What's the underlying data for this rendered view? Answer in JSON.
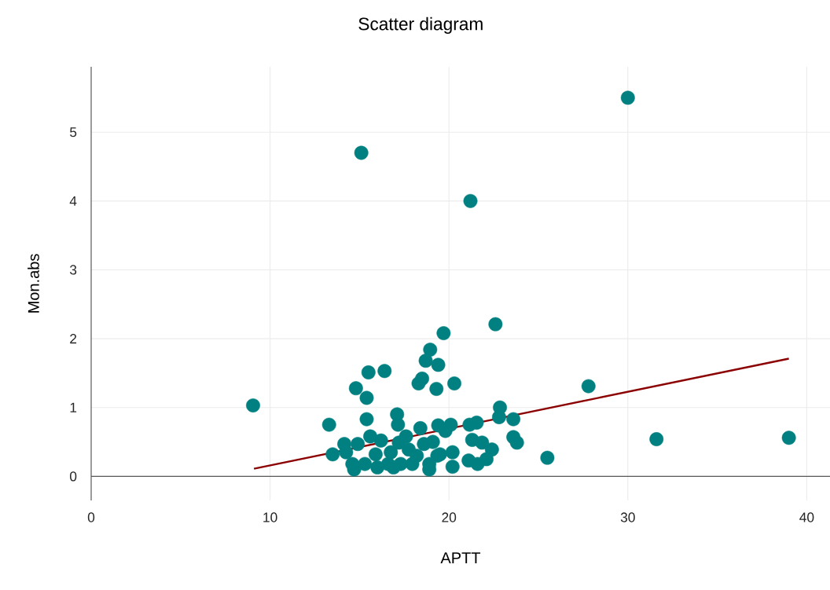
{
  "chart_data": {
    "type": "scatter",
    "title": "Scatter diagram",
    "xlabel": "APTT",
    "ylabel": "Mon.abs",
    "xlim": [
      0,
      41.3
    ],
    "ylim": [
      -0.35,
      5.95
    ],
    "xticks": [
      0,
      10,
      20,
      30,
      40
    ],
    "yticks": [
      0,
      1,
      2,
      3,
      4,
      5
    ],
    "grid": true,
    "series": [
      {
        "marker": "circle",
        "color": "#008080",
        "x": [
          9.05,
          30.0,
          15.1,
          21.2,
          22.6,
          19.7,
          18.95,
          19.4,
          18.7,
          16.4,
          15.5,
          18.3,
          18.5,
          20.3,
          19.3,
          14.8,
          15.4,
          27.8,
          31.6,
          39.0,
          25.5,
          13.3,
          15.4,
          17.1,
          17.15,
          18.4,
          22.85,
          22.8,
          23.6,
          23.6,
          23.8,
          21.55,
          21.15,
          20.1,
          19.4,
          19.8,
          21.3,
          21.85,
          22.4,
          22.1,
          21.1,
          21.6,
          20.2,
          20.2,
          19.1,
          19.5,
          18.9,
          18.2,
          17.75,
          17.2,
          16.75,
          16.6,
          16.2,
          15.9,
          15.6,
          15.3,
          14.9,
          14.6,
          14.25,
          14.15,
          13.5,
          17.3,
          17.95,
          18.6,
          17.6,
          16.9,
          16.0,
          14.7,
          18.9,
          19.35
        ],
        "values": [
          1.03,
          5.5,
          4.7,
          4.0,
          2.21,
          2.08,
          1.84,
          1.62,
          1.68,
          1.53,
          1.51,
          1.35,
          1.42,
          1.35,
          1.27,
          1.28,
          1.14,
          1.31,
          0.54,
          0.56,
          0.27,
          0.75,
          0.83,
          0.9,
          0.75,
          0.7,
          1.0,
          0.86,
          0.83,
          0.57,
          0.49,
          0.78,
          0.75,
          0.75,
          0.74,
          0.66,
          0.53,
          0.49,
          0.39,
          0.25,
          0.23,
          0.18,
          0.14,
          0.35,
          0.5,
          0.32,
          0.18,
          0.3,
          0.39,
          0.49,
          0.35,
          0.18,
          0.52,
          0.32,
          0.58,
          0.18,
          0.47,
          0.18,
          0.35,
          0.47,
          0.32,
          0.18,
          0.18,
          0.47,
          0.58,
          0.13,
          0.13,
          0.1,
          0.1,
          0.3
        ]
      },
      {
        "type": "line",
        "marker": "none",
        "color": "#8b0000",
        "x": [
          9.1,
          39.0
        ],
        "values": [
          0.11,
          1.71
        ]
      }
    ]
  }
}
